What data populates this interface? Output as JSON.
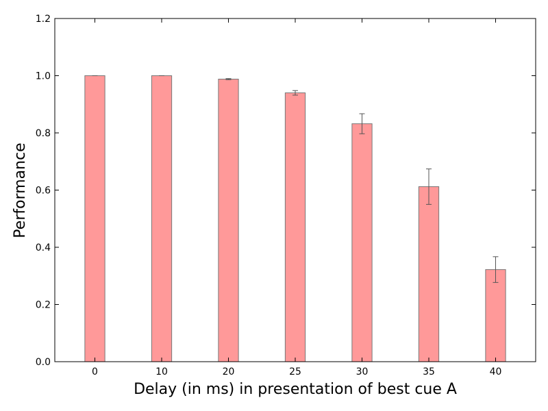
{
  "chart_data": {
    "type": "bar",
    "categories": [
      "0",
      "10",
      "20",
      "25",
      "30",
      "35",
      "40"
    ],
    "values": [
      1.0,
      1.0,
      0.988,
      0.94,
      0.832,
      0.612,
      0.322
    ],
    "errors": [
      0.0,
      0.0,
      0.002,
      0.008,
      0.035,
      0.062,
      0.045
    ],
    "title": "",
    "xlabel": "Delay (in ms) in presentation of best cue A",
    "ylabel": "Performance",
    "ylim": [
      0,
      1.2
    ],
    "yticks": [
      "0.0",
      "0.2",
      "0.4",
      "0.6",
      "0.8",
      "1.0",
      "1.2"
    ],
    "bar_color": "#ff9999",
    "bar_edge_color": "#777777",
    "error_color": "#555555",
    "grid": false,
    "legend": "none"
  }
}
